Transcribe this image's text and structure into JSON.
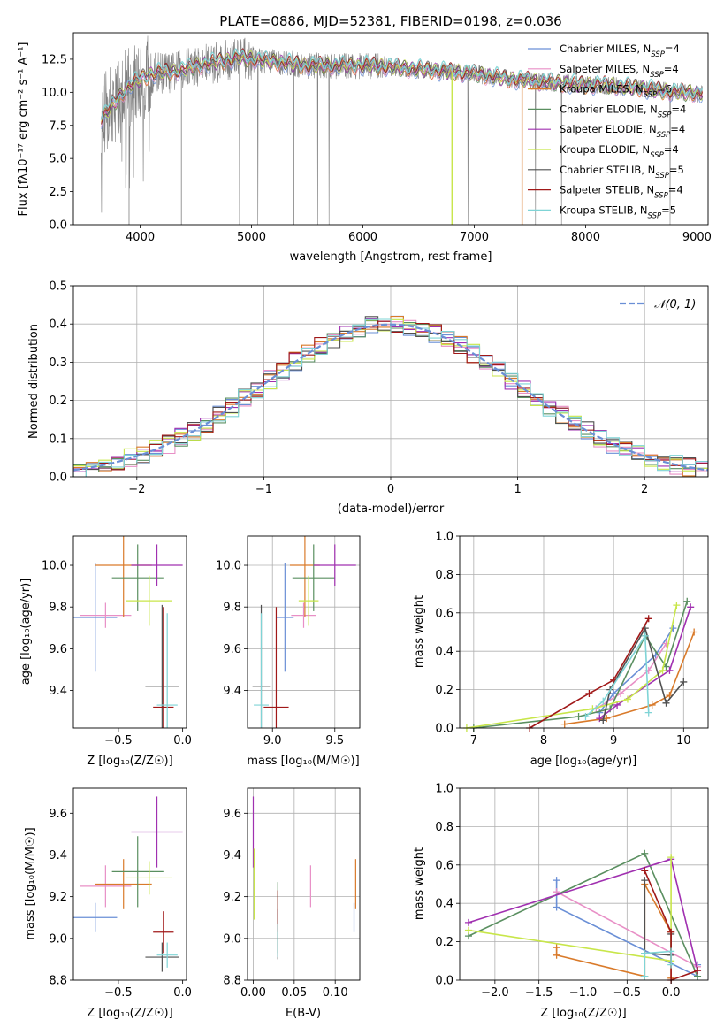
{
  "figure_title": "PLATE=0886, MJD=52381, FIBERID=0198, z=0.036",
  "colors": [
    "#6a8fd6",
    "#e88fc6",
    "#d97a2a",
    "#5a8f60",
    "#a030b0",
    "#c8e64a",
    "#505050",
    "#a01818",
    "#7fd4d6"
  ],
  "chart_data": [
    {
      "id": "spectrum",
      "type": "line",
      "title": "PLATE=0886, MJD=52381, FIBERID=0198, z=0.036",
      "xlabel": "wavelength [Angstrom, rest frame]",
      "ylabel": "Flux [fλ10⁻¹⁷ erg cm⁻² s⁻¹ A⁻¹]",
      "xlim": [
        3400,
        9100
      ],
      "ylim": [
        0,
        14.5
      ],
      "xticks": [
        4000,
        5000,
        6000,
        7000,
        8000,
        9000
      ],
      "yticks": [
        0.0,
        2.5,
        5.0,
        7.5,
        10.0,
        12.5
      ],
      "yticklabels": [
        "0.0",
        "2.5",
        "5.0",
        "7.5",
        "10.0",
        "12.5"
      ],
      "legend_position": "top-right",
      "legend": [
        "Chabrier MILES, NSSP=4",
        "Salpeter MILES, NSSP=4",
        "Kroupa MILES, NSSP=6",
        "Chabrier ELODIE, NSSP=4",
        "Salpeter ELODIE, NSSP=4",
        "Kroupa ELODIE, NSSP=4",
        "Chabrier STELIB, NSSP=5",
        "Salpeter STELIB, NSSP=4",
        "Kroupa STELIB, NSSP=5"
      ],
      "legend_parts": [
        {
          "model": "Chabrier MILES, N",
          "sub": "SSP",
          "n": "=4"
        },
        {
          "model": "Salpeter MILES, N",
          "sub": "SSP",
          "n": "=4"
        },
        {
          "model": "Kroupa MILES, N",
          "sub": "SSP",
          "n": "=6"
        },
        {
          "model": "Chabrier ELODIE, N",
          "sub": "SSP",
          "n": "=4"
        },
        {
          "model": "Salpeter ELODIE, N",
          "sub": "SSP",
          "n": "=4"
        },
        {
          "model": "Kroupa ELODIE, N",
          "sub": "SSP",
          "n": "=4"
        },
        {
          "model": "Chabrier STELIB, N",
          "sub": "SSP",
          "n": "=5"
        },
        {
          "model": "Salpeter STELIB, N",
          "sub": "SSP",
          "n": "=4"
        },
        {
          "model": "Kroupa STELIB, N",
          "sub": "SSP",
          "n": "=5"
        }
      ],
      "model_continuum": {
        "x": [
          3650,
          3800,
          3900,
          4000,
          4150,
          4300,
          4500,
          4700,
          4900,
          5100,
          5300,
          5500,
          5800,
          6100,
          6400,
          6700,
          7000,
          7300,
          7600,
          7900,
          8200,
          8500,
          8800,
          9050
        ],
        "y": [
          8.0,
          9.5,
          10.5,
          11.0,
          11.5,
          11.5,
          12.0,
          12.3,
          12.6,
          12.4,
          12.2,
          12.0,
          12.0,
          12.0,
          11.8,
          11.6,
          11.4,
          11.0,
          10.8,
          10.6,
          10.5,
          10.3,
          10.0,
          9.9
        ]
      },
      "data_scatter_range": [
        3650,
        9050
      ],
      "absorption_dips": [
        {
          "x": 3900,
          "y": 0
        },
        {
          "x": 4370,
          "y": 0
        },
        {
          "x": 5380,
          "y": 0
        }
      ],
      "model_dropouts": [
        {
          "x": 6800,
          "y": 0,
          "series": "Kroupa ELODIE, NSSP=4"
        },
        {
          "x": 7430,
          "y": 0,
          "series": "Kroupa MILES, NSSP=6"
        }
      ]
    },
    {
      "id": "residuals",
      "type": "histogram",
      "xlabel": "(data-model)/error",
      "ylabel": "Normed distribution",
      "xlim": [
        -2.5,
        2.5
      ],
      "ylim": [
        0,
        0.5
      ],
      "xticks": [
        -2,
        -1,
        0,
        1,
        2
      ],
      "xticklabels": [
        "−2",
        "−1",
        "0",
        "1",
        "2"
      ],
      "yticks": [
        0.0,
        0.1,
        0.2,
        0.3,
        0.4,
        0.5
      ],
      "yticklabels": [
        "0.0",
        "0.1",
        "0.2",
        "0.3",
        "0.4",
        "0.5"
      ],
      "grid": true,
      "legend_position": "top-right",
      "reference_curve": {
        "name": "𝒩(0, 1)",
        "mean": 0,
        "sigma": 1
      },
      "bin_width": 0.1
    },
    {
      "id": "age_vs_Z",
      "type": "errorbar",
      "xlabel": "Z [log₁₀(Z/Z☉)]",
      "ylabel": "age  [log₁₀(age/yr)]",
      "xlim": [
        -0.85,
        0.03
      ],
      "ylim": [
        9.22,
        10.14
      ],
      "xticks": [
        -0.5,
        0.0
      ],
      "xticklabels": [
        "−0.5",
        "0.0"
      ],
      "yticks": [
        9.4,
        9.6,
        9.8,
        10.0
      ],
      "yticklabels": [
        "9.4",
        "9.6",
        "9.8",
        "10.0"
      ],
      "grid": false,
      "points": [
        {
          "x": -0.68,
          "y": 9.75,
          "xerr": 0.17,
          "yerr": 0.26
        },
        {
          "x": -0.6,
          "y": 9.76,
          "xerr": 0.2,
          "yerr": 0.06
        },
        {
          "x": -0.46,
          "y": 10.0,
          "xerr": 0.22,
          "yerr": 0.25
        },
        {
          "x": -0.35,
          "y": 9.94,
          "xerr": 0.2,
          "yerr": 0.16
        },
        {
          "x": -0.2,
          "y": 10.0,
          "xerr": 0.2,
          "yerr": 0.1
        },
        {
          "x": -0.26,
          "y": 9.83,
          "xerr": 0.18,
          "yerr": 0.12
        },
        {
          "x": -0.16,
          "y": 9.42,
          "xerr": 0.13,
          "yerr": 0.39
        },
        {
          "x": -0.15,
          "y": 9.32,
          "xerr": 0.08,
          "yerr": 0.48
        },
        {
          "x": -0.12,
          "y": 9.33,
          "xerr": 0.08,
          "yerr": 0.44
        }
      ]
    },
    {
      "id": "age_vs_mass",
      "type": "errorbar",
      "xlabel": "mass [log₁₀(M/M☉)]",
      "ylabel": "",
      "xlim": [
        8.8,
        9.7
      ],
      "ylim": [
        9.22,
        10.14
      ],
      "xticks": [
        9.0,
        9.5
      ],
      "xticklabels": [
        "9.0",
        "9.5"
      ],
      "yticks": [
        9.4,
        9.6,
        9.8,
        10.0
      ],
      "yticklabels": [
        "9.4",
        "9.6",
        "9.8",
        "10.0"
      ],
      "grid": true,
      "points": [
        {
          "x": 9.1,
          "y": 9.75,
          "xerr": 0.07,
          "yerr": 0.26
        },
        {
          "x": 9.25,
          "y": 9.76,
          "xerr": 0.1,
          "yerr": 0.06
        },
        {
          "x": 9.26,
          "y": 10.0,
          "xerr": 0.12,
          "yerr": 0.25
        },
        {
          "x": 9.33,
          "y": 9.94,
          "xerr": 0.17,
          "yerr": 0.16
        },
        {
          "x": 9.5,
          "y": 10.0,
          "xerr": 0.17,
          "yerr": 0.1
        },
        {
          "x": 9.29,
          "y": 9.83,
          "xerr": 0.08,
          "yerr": 0.12
        },
        {
          "x": 8.91,
          "y": 9.42,
          "xerr": 0.07,
          "yerr": 0.39
        },
        {
          "x": 9.03,
          "y": 9.32,
          "xerr": 0.1,
          "yerr": 0.48
        },
        {
          "x": 8.91,
          "y": 9.33,
          "xerr": 0.06,
          "yerr": 0.44
        }
      ]
    },
    {
      "id": "weight_vs_age",
      "type": "line",
      "xlabel": "age  [log₁₀(age/yr)]",
      "ylabel": "mass weight",
      "xlim": [
        6.8,
        10.35
      ],
      "ylim": [
        0,
        1
      ],
      "xticks": [
        7,
        8,
        9,
        10
      ],
      "xticklabels": [
        "7",
        "8",
        "9",
        "10"
      ],
      "yticks": [
        0.0,
        0.2,
        0.4,
        0.6,
        0.8,
        1.0
      ],
      "yticklabels": [
        "0.0",
        "0.2",
        "0.4",
        "0.6",
        "0.8",
        "1.0"
      ],
      "grid": true,
      "series": [
        {
          "x": [
            8.8,
            9.0,
            9.6,
            9.85
          ],
          "y": [
            0.08,
            0.18,
            0.38,
            0.52
          ]
        },
        {
          "x": [
            8.75,
            9.1,
            9.5,
            9.75
          ],
          "y": [
            0.1,
            0.18,
            0.3,
            0.44
          ]
        },
        {
          "x": [
            8.3,
            8.9,
            9.55,
            9.8,
            10.15
          ],
          "y": [
            0.02,
            0.05,
            0.12,
            0.17,
            0.5
          ]
        },
        {
          "x": [
            7.0,
            8.5,
            8.95,
            9.45,
            9.75,
            10.05
          ],
          "y": [
            0.0,
            0.06,
            0.1,
            0.48,
            0.32,
            0.66
          ]
        },
        {
          "x": [
            8.8,
            9.05,
            9.8,
            10.1
          ],
          "y": [
            0.05,
            0.12,
            0.3,
            0.63
          ]
        },
        {
          "x": [
            6.9,
            8.7,
            9.2,
            9.7,
            9.9
          ],
          "y": [
            0.0,
            0.1,
            0.15,
            0.3,
            0.64
          ]
        },
        {
          "x": [
            8.85,
            8.95,
            9.45,
            9.75,
            10.0
          ],
          "y": [
            0.04,
            0.2,
            0.52,
            0.13,
            0.24
          ]
        },
        {
          "x": [
            7.8,
            8.65,
            9.0,
            9.5
          ],
          "y": [
            0.0,
            0.18,
            0.25,
            0.57
          ]
        },
        {
          "x": [
            8.6,
            8.85,
            9.45,
            9.5
          ],
          "y": [
            0.06,
            0.14,
            0.48,
            0.08
          ]
        }
      ]
    },
    {
      "id": "mass_vs_Z",
      "type": "errorbar",
      "xlabel": "Z [log₁₀(Z/Z☉)]",
      "ylabel": "mass [log₁₀(M/M☉)]",
      "xlim": [
        -0.85,
        0.03
      ],
      "ylim": [
        8.8,
        9.72
      ],
      "xticks": [
        -0.5,
        0.0
      ],
      "xticklabels": [
        "−0.5",
        "0.0"
      ],
      "yticks": [
        8.8,
        9.0,
        9.2,
        9.4,
        9.6
      ],
      "yticklabels": [
        "8.8",
        "9.0",
        "9.2",
        "9.4",
        "9.6"
      ],
      "grid": false,
      "points": [
        {
          "x": -0.68,
          "y": 9.1,
          "xerr": 0.17,
          "yerr": 0.07
        },
        {
          "x": -0.6,
          "y": 9.25,
          "xerr": 0.2,
          "yerr": 0.1
        },
        {
          "x": -0.46,
          "y": 9.26,
          "xerr": 0.22,
          "yerr": 0.12
        },
        {
          "x": -0.35,
          "y": 9.32,
          "xerr": 0.2,
          "yerr": 0.17
        },
        {
          "x": -0.2,
          "y": 9.51,
          "xerr": 0.2,
          "yerr": 0.17
        },
        {
          "x": -0.26,
          "y": 9.29,
          "xerr": 0.18,
          "yerr": 0.08
        },
        {
          "x": -0.16,
          "y": 8.91,
          "xerr": 0.13,
          "yerr": 0.07
        },
        {
          "x": -0.15,
          "y": 9.03,
          "xerr": 0.08,
          "yerr": 0.1
        },
        {
          "x": -0.12,
          "y": 8.92,
          "xerr": 0.08,
          "yerr": 0.06
        }
      ]
    },
    {
      "id": "mass_vs_ebv",
      "type": "errorbar",
      "xlabel": "E(B-V)",
      "ylabel": "",
      "xlim": [
        -0.007,
        0.13
      ],
      "ylim": [
        8.8,
        9.72
      ],
      "xticks": [
        0.0,
        0.05,
        0.1
      ],
      "xticklabels": [
        "0.00",
        "0.05",
        "0.10"
      ],
      "yticks": [
        8.8,
        9.0,
        9.2,
        9.4,
        9.6
      ],
      "yticklabels": [
        "8.8",
        "9.0",
        "9.2",
        "9.4",
        "9.6"
      ],
      "grid": true,
      "points": [
        {
          "x": 0.123,
          "y": 9.1,
          "xerr": 0,
          "yerr": 0.07
        },
        {
          "x": 0.07,
          "y": 9.25,
          "xerr": 0,
          "yerr": 0.1
        },
        {
          "x": 0.125,
          "y": 9.26,
          "xerr": 0,
          "yerr": 0.12
        },
        {
          "x": 0.03,
          "y": 9.1,
          "xerr": 0,
          "yerr": 0.17
        },
        {
          "x": 0.0,
          "y": 9.51,
          "xerr": 0,
          "yerr": 0.17
        },
        {
          "x": 0.001,
          "y": 9.26,
          "xerr": 0,
          "yerr": 0.17
        },
        {
          "x": 0.03,
          "y": 9.02,
          "xerr": 0,
          "yerr": 0.12
        },
        {
          "x": 0.03,
          "y": 9.13,
          "xerr": 0,
          "yerr": 0.1
        },
        {
          "x": 0.03,
          "y": 8.99,
          "xerr": 0,
          "yerr": 0.08
        }
      ]
    },
    {
      "id": "weight_vs_Z",
      "type": "line",
      "xlabel": "Z [log₁₀(Z/Z☉)]",
      "ylabel": "mass weight",
      "xlim": [
        -2.4,
        0.42
      ],
      "ylim": [
        0,
        1
      ],
      "xticks": [
        -2.0,
        -1.5,
        -1.0,
        -0.5,
        0.0
      ],
      "xticklabels": [
        "−2.0",
        "−1.5",
        "−1.0",
        "−0.5",
        "0.0"
      ],
      "yticks": [
        0.0,
        0.2,
        0.4,
        0.6,
        0.8,
        1.0
      ],
      "yticklabels": [
        "0.0",
        "0.2",
        "0.4",
        "0.6",
        "0.8",
        "1.0"
      ],
      "grid": true,
      "series": [
        {
          "x": [
            -1.3,
            -1.3,
            0.3,
            0.3
          ],
          "y": [
            0.52,
            0.38,
            0.02,
            0.08
          ]
        },
        {
          "x": [
            -1.3,
            0.3
          ],
          "y": [
            0.46,
            0.07
          ]
        },
        {
          "x": [
            -1.3,
            -1.3,
            -0.3,
            -0.3,
            0.0,
            0.0
          ],
          "y": [
            0.17,
            0.13,
            0.02,
            0.5,
            0.25,
            0.01
          ]
        },
        {
          "x": [
            -2.3,
            -0.3,
            0.3
          ],
          "y": [
            0.23,
            0.66,
            0.02
          ]
        },
        {
          "x": [
            -2.3,
            0.0,
            0.3
          ],
          "y": [
            0.3,
            0.63,
            0.05
          ]
        },
        {
          "x": [
            -2.3,
            0.0,
            0.0
          ],
          "y": [
            0.26,
            0.1,
            0.64
          ]
        },
        {
          "x": [
            -0.3,
            -0.3,
            0.0,
            0.0
          ],
          "y": [
            0.52,
            0.14,
            0.13,
            0.24
          ]
        },
        {
          "x": [
            -0.3,
            0.0,
            0.0,
            0.3
          ],
          "y": [
            0.57,
            0.25,
            0.0,
            0.05
          ]
        },
        {
          "x": [
            -0.3,
            -0.3,
            0.0,
            0.0
          ],
          "y": [
            0.02,
            0.14,
            0.15,
            0.08
          ]
        }
      ]
    }
  ]
}
